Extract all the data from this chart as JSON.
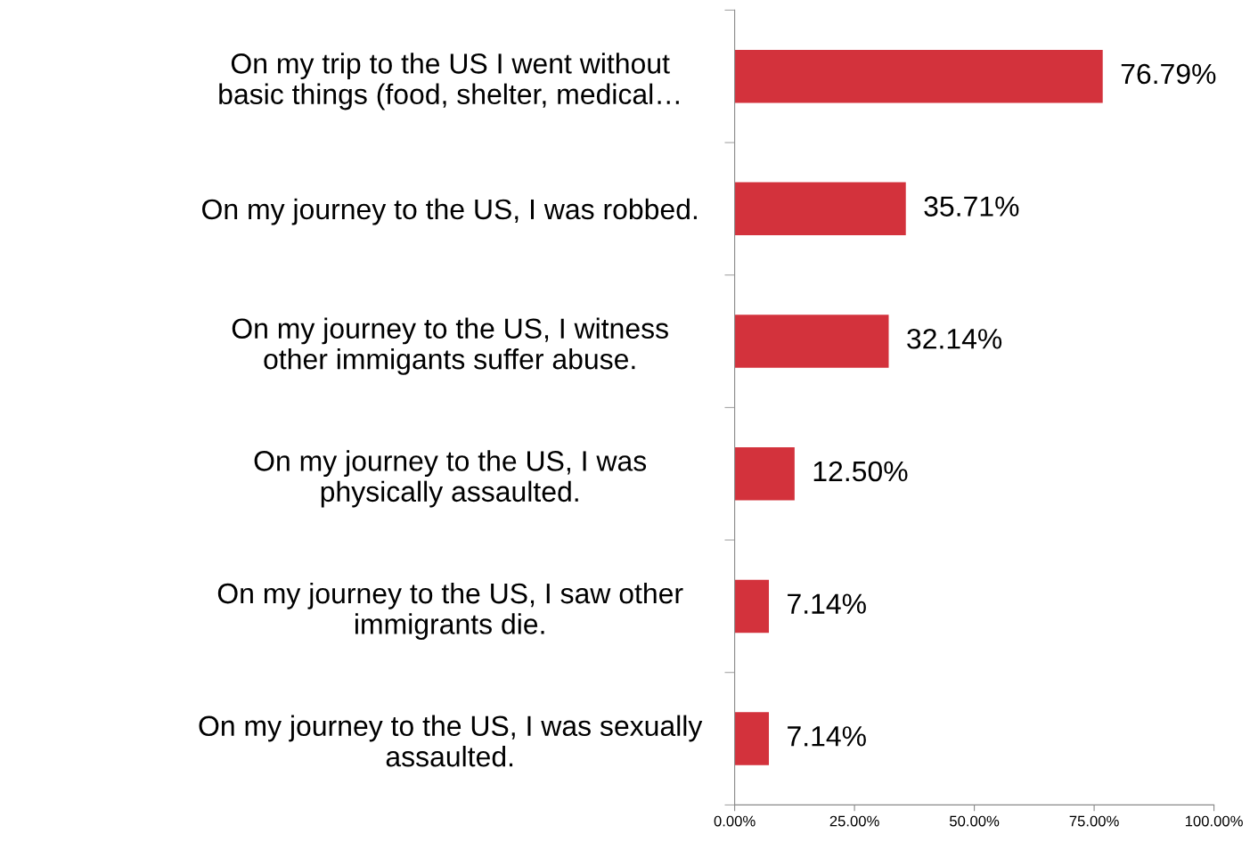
{
  "chart_data": {
    "type": "bar",
    "orientation": "horizontal",
    "categories": [
      "On my trip to the US I went without\nbasic things (food, shelter, medical…",
      "On my journey to the US, I was robbed.",
      "On my journey to the US, I witness\nother immigants suffer abuse.",
      "On my journey to the US, I was\nphysically assaulted.",
      "On my journey to the US, I saw other\nimmigrants die.",
      "On my journey to the US, I was sexually\nassaulted."
    ],
    "values": [
      76.79,
      35.71,
      32.14,
      12.5,
      7.14,
      7.14
    ],
    "value_labels": [
      "76.79%",
      "35.71%",
      "32.14%",
      "12.50%",
      "7.14%",
      "7.14%"
    ],
    "color": "#d3323c",
    "xlim": [
      0,
      100
    ],
    "xticks": [
      {
        "value": 0,
        "label": "0.00%"
      },
      {
        "value": 25,
        "label": "25.00%"
      },
      {
        "value": 50,
        "label": "50.00%"
      },
      {
        "value": 75,
        "label": "75.00%"
      },
      {
        "value": 100,
        "label": "100.00%"
      }
    ],
    "grid": false,
    "legend": false
  }
}
